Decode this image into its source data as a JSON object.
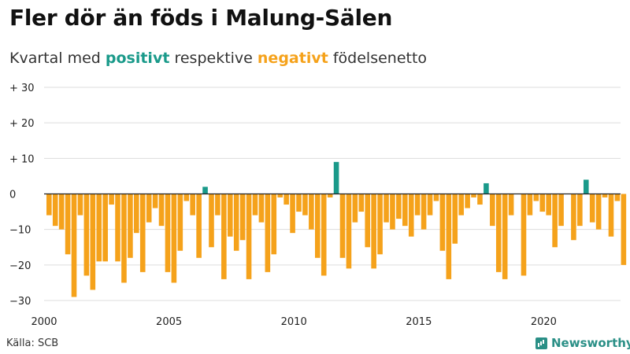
{
  "title": "Fler dör än föds i Malung-Sälen",
  "subtitle": {
    "prefix": "Kvartal med ",
    "positive_word": "positivt",
    "middle": " respektive ",
    "negative_word": "negativt",
    "suffix": " födelsenetto"
  },
  "source": "Källa: SCB",
  "brand": "Newsworthy",
  "colors": {
    "positive": "#1a9a8a",
    "negative": "#f5a21b",
    "grid": "#dddddd",
    "axis": "#222222"
  },
  "chart_data": {
    "type": "bar",
    "xlabel": "",
    "ylabel": "",
    "ylim": [
      -30,
      30
    ],
    "yticks": [
      {
        "value": 30,
        "label": "+ 30"
      },
      {
        "value": 20,
        "label": "+ 20"
      },
      {
        "value": 10,
        "label": "+ 10"
      },
      {
        "value": 0,
        "label": "0"
      },
      {
        "value": -10,
        "label": "−10"
      },
      {
        "value": -20,
        "label": "−20"
      },
      {
        "value": -30,
        "label": "−30"
      }
    ],
    "xticks": [
      "2000",
      "2005",
      "2010",
      "2015",
      "2020"
    ],
    "grid": true,
    "start_year": 2000,
    "values": [
      -6,
      -9,
      -10,
      -17,
      -29,
      -6,
      -23,
      -27,
      -19,
      -19,
      -3,
      -19,
      -25,
      -18,
      -11,
      -22,
      -8,
      -4,
      -9,
      -22,
      -25,
      -16,
      -2,
      -6,
      -18,
      2,
      -15,
      -6,
      -24,
      -12,
      -16,
      -13,
      -24,
      -6,
      -8,
      -22,
      -17,
      -1,
      -3,
      -11,
      -5,
      -6,
      -10,
      -18,
      -23,
      -1,
      9,
      -18,
      -21,
      -8,
      -5,
      -15,
      -21,
      -17,
      -8,
      -10,
      -7,
      -9,
      -12,
      -6,
      -10,
      -6,
      -2,
      -16,
      -24,
      -14,
      -6,
      -4,
      -1,
      -3,
      3,
      -9,
      -22,
      -24,
      -6,
      0,
      -23,
      -6,
      -2,
      -5,
      -6,
      -15,
      -9,
      0,
      -13,
      -9,
      4,
      -8,
      -10,
      -1,
      -12,
      -2,
      -20
    ]
  }
}
